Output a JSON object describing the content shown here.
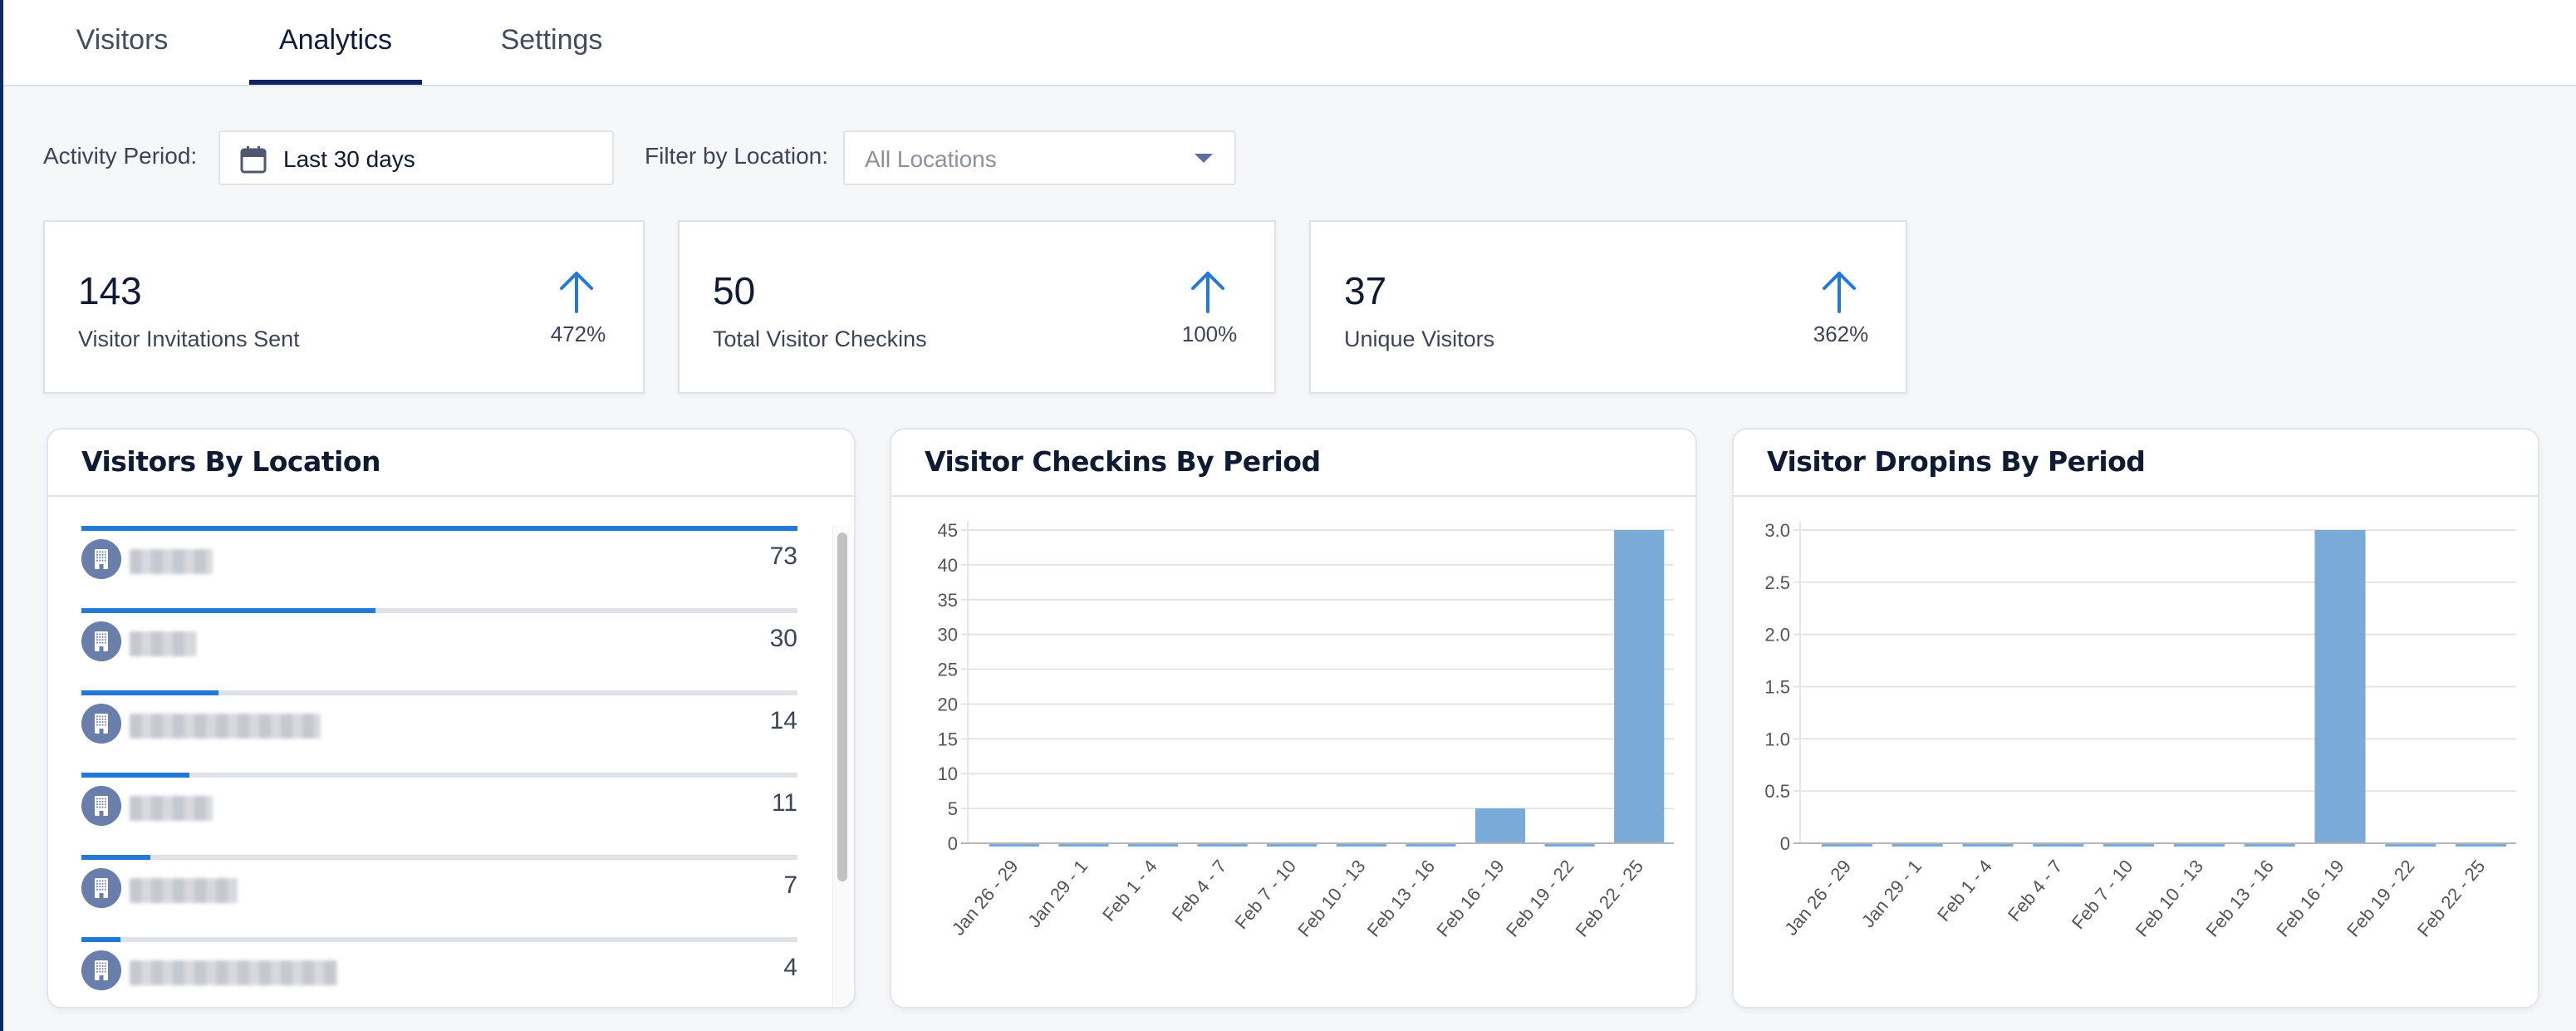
{
  "tabs": [
    {
      "label": "Visitors",
      "active": false
    },
    {
      "label": "Analytics",
      "active": true
    },
    {
      "label": "Settings",
      "active": false
    }
  ],
  "filters": {
    "activity_period_label": "Activity Period:",
    "activity_period_value": "Last 30 days",
    "location_label": "Filter by Location:",
    "location_placeholder": "All Locations"
  },
  "stats": [
    {
      "value": "143",
      "label": "Visitor Invitations Sent",
      "change": "472%",
      "trend": "up"
    },
    {
      "value": "50",
      "label": "Total Visitor Checkins",
      "change": "100%",
      "trend": "up"
    },
    {
      "value": "37",
      "label": "Unique Visitors",
      "change": "362%",
      "trend": "up"
    }
  ],
  "colors": {
    "accent": "#2379d8",
    "bar": "#79aad8",
    "tab_active": "#0f2360",
    "location_icon": "#6a7eab"
  },
  "visitors_by_location": {
    "title": "Visitors By Location",
    "max": 73,
    "items": [
      {
        "name": "[redacted]",
        "count": 73
      },
      {
        "name": "[redacted]",
        "count": 30
      },
      {
        "name": "[redacted]",
        "count": 14
      },
      {
        "name": "[redacted]",
        "count": 11
      },
      {
        "name": "[redacted]",
        "count": 7
      },
      {
        "name": "[redacted]",
        "count": 4
      }
    ]
  },
  "chart_data": [
    {
      "type": "bar",
      "title": "Visitor Checkins By Period",
      "categories": [
        "Jan 26 - 29",
        "Jan 29 - 1",
        "Feb 1 - 4",
        "Feb 4 - 7",
        "Feb 7 - 10",
        "Feb 10 - 13",
        "Feb 13 - 16",
        "Feb 16 - 19",
        "Feb 19 - 22",
        "Feb 22 - 25"
      ],
      "values": [
        0,
        0,
        0,
        0,
        0,
        0,
        0,
        5,
        0,
        45
      ],
      "xlabel": "",
      "ylabel": "",
      "ylim": [
        0,
        45
      ],
      "yticks": [
        "0",
        "5",
        "10",
        "15",
        "20",
        "25",
        "30",
        "35",
        "40",
        "45"
      ],
      "ytick_values": [
        0,
        5,
        10,
        15,
        20,
        25,
        30,
        35,
        40,
        45
      ],
      "grid": true
    },
    {
      "type": "bar",
      "title": "Visitor Dropins By Period",
      "categories": [
        "Jan 26 - 29",
        "Jan 29 - 1",
        "Feb 1 - 4",
        "Feb 4 - 7",
        "Feb 7 - 10",
        "Feb 10 - 13",
        "Feb 13 - 16",
        "Feb 16 - 19",
        "Feb 19 - 22",
        "Feb 22 - 25"
      ],
      "values": [
        0,
        0,
        0,
        0,
        0,
        0,
        0,
        3,
        0,
        0
      ],
      "xlabel": "",
      "ylabel": "",
      "ylim": [
        0,
        3
      ],
      "yticks": [
        "0",
        "0.5",
        "1.0",
        "1.5",
        "2.0",
        "2.5",
        "3.0"
      ],
      "ytick_values": [
        0,
        0.5,
        1,
        1.5,
        2,
        2.5,
        3
      ],
      "grid": true
    }
  ]
}
